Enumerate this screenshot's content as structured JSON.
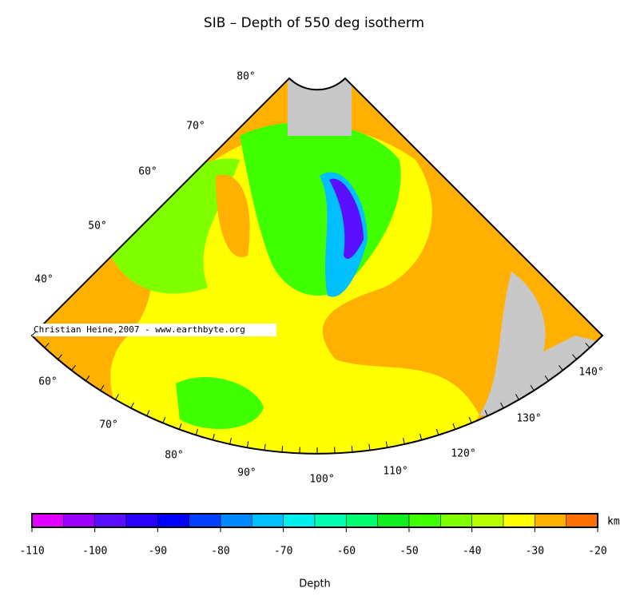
{
  "title": "SIB – Depth of 550 deg isotherm",
  "map": {
    "lat_labels": [
      "80°",
      "70°",
      "60°",
      "50°",
      "40°"
    ],
    "lon_labels": [
      "60°",
      "70°",
      "80°",
      "90°",
      "100°",
      "110°",
      "120°",
      "130°",
      "140°"
    ],
    "watermark": "Christian Heine,2007 - www.earthbyte.org"
  },
  "colorbar": {
    "xlim": [
      -110,
      -20
    ],
    "bins": [
      -110,
      -105,
      -100,
      -95,
      -90,
      -85,
      -80,
      -75,
      -70,
      -65,
      -60,
      -55,
      -50,
      -45,
      -40,
      -35,
      -30,
      -25,
      -20
    ],
    "colors": [
      "#e000ff",
      "#9a00ff",
      "#5a10ff",
      "#2a00ff",
      "#0000ff",
      "#0040ff",
      "#0088ff",
      "#00c0ff",
      "#00f0f0",
      "#00ffb0",
      "#00ff70",
      "#10f020",
      "#40ff00",
      "#80ff00",
      "#b8ff00",
      "#ffff00",
      "#ffb000",
      "#ff7000"
    ],
    "ticks": [
      -110,
      -100,
      -90,
      -80,
      -70,
      -60,
      -50,
      -40,
      -30,
      -20
    ],
    "unit": "km",
    "label": "Depth"
  }
}
